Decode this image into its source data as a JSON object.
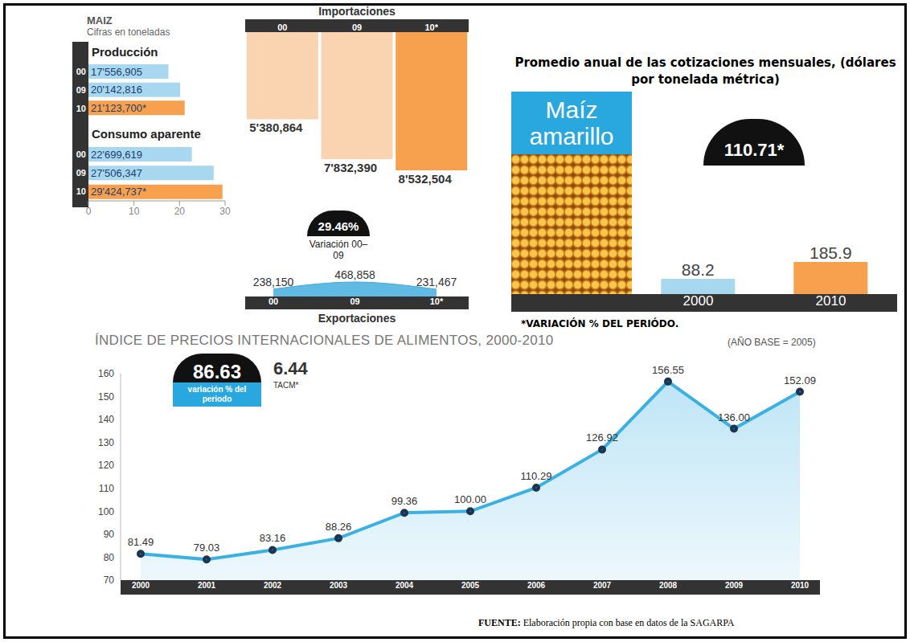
{
  "chart_data": [
    {
      "type": "bar",
      "orientation": "horizontal",
      "title": "MAIZ",
      "subtitle": "Cifras en toneladas",
      "categories": [
        "00",
        "09",
        "10"
      ],
      "series": [
        {
          "name": "Producción",
          "values": [
            17.556905,
            20.142816,
            21.1237
          ],
          "value_labels": [
            "17'556,905",
            "20'142,816",
            "21'123,700*"
          ],
          "colors": [
            "#a8d8ef",
            "#a8d8ef",
            "#f7a14e"
          ]
        },
        {
          "name": "Consumo aparente",
          "values": [
            22.699619,
            27.506347,
            29.424737
          ],
          "value_labels": [
            "22'699,619",
            "27'506,347",
            "29'424,737*"
          ],
          "colors": [
            "#a8d8ef",
            "#a8d8ef",
            "#f7a14e"
          ]
        }
      ],
      "xlim": [
        0,
        30
      ],
      "xticks": [
        0,
        10,
        20,
        30
      ],
      "data_labels": true,
      "annotation": {
        "label": "29.46%",
        "text": "Variación 00–09"
      }
    },
    {
      "type": "bar",
      "title": "Importaciones",
      "categories": [
        "00",
        "09",
        "10*"
      ],
      "values": [
        5380864,
        7832390,
        8532504
      ],
      "value_labels": [
        "5'380,864",
        "7'832,390",
        "8'532,504"
      ],
      "colors": [
        "#fad3b0",
        "#fad3b0",
        "#f7a14e"
      ],
      "data_labels": true,
      "tick_labels": "x"
    },
    {
      "type": "area",
      "title": "Exportaciones",
      "categories": [
        "00",
        "09",
        "10*"
      ],
      "values": [
        238150,
        468858,
        231467
      ],
      "value_labels": [
        "238,150",
        "468,858",
        "231,467"
      ],
      "color": "#3aa9dc",
      "data_labels": true,
      "tick_labels": "x"
    },
    {
      "type": "bar",
      "title": "Promedio anual de las cotizaciones mensuales, (dólares por tonelada métrica)",
      "subtitle": "Maíz amarillo",
      "categories": [
        "2000",
        "2010"
      ],
      "values": [
        88.2,
        185.9
      ],
      "colors": [
        "#a8d8ef",
        "#f7a14e"
      ],
      "data_labels": true,
      "tick_labels": "x",
      "annotation": {
        "label": "110.71*"
      },
      "note": "*VARIACIÓN % DEL PERIÓDO."
    },
    {
      "type": "area",
      "title": "ÍNDICE DE PRECIOS INTERNACIONALES DE ALIMENTOS, 2000-2010",
      "subtitle": "(AÑO BASE = 2005)",
      "categories": [
        "2000",
        "2001",
        "2002",
        "2003",
        "2004",
        "2005",
        "2006",
        "2007",
        "2008",
        "2009",
        "2010"
      ],
      "values": [
        81.49,
        79.03,
        83.16,
        88.26,
        99.36,
        100.0,
        110.29,
        126.92,
        156.55,
        136.0,
        152.09
      ],
      "value_labels": [
        "81.49",
        "79.03",
        "83.16",
        "88.26",
        "99.36",
        "100.00",
        "110.29",
        "126.92",
        "156.55",
        "136.00",
        "152.09"
      ],
      "color": "#3bb0e3",
      "ylim": [
        70,
        160
      ],
      "yticks": [
        70,
        80,
        90,
        100,
        110,
        120,
        130,
        140,
        150,
        160
      ],
      "data_labels": true,
      "annotations": [
        {
          "label": "86.63",
          "text": "variación % del periodo"
        },
        {
          "label": "6.44",
          "text": "TACM*"
        }
      ]
    }
  ],
  "source": {
    "label": "FUENTE:",
    "text": "Elaboración propia con base en datos de la SAGARPA"
  }
}
